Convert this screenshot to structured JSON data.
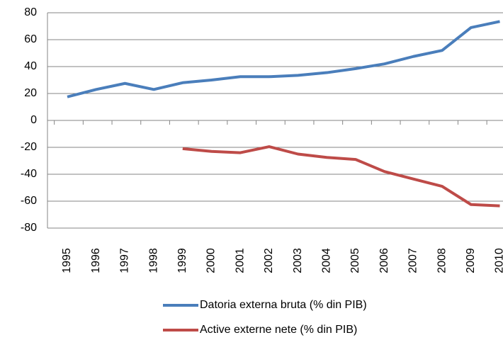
{
  "chart_data": {
    "type": "line",
    "categories": [
      "1995",
      "1996",
      "1997",
      "1998",
      "1999",
      "2000",
      "2001",
      "2002",
      "2003",
      "2004",
      "2005",
      "2006",
      "2007",
      "2008",
      "2009",
      "2010"
    ],
    "series": [
      {
        "name": "Datoria externa bruta (% din PIB)",
        "color": "#4a7ebb",
        "values": [
          17.5,
          23,
          27.5,
          23,
          28,
          30,
          32.5,
          32.5,
          33.5,
          35.5,
          38.5,
          42,
          47.5,
          52,
          69,
          73.5
        ]
      },
      {
        "name": "Active externe nete (% din PIB)",
        "color": "#be4b48",
        "values": [
          null,
          null,
          null,
          null,
          -21,
          -23,
          -24,
          -19.5,
          -25,
          -27.5,
          -29,
          -38,
          -43.5,
          -49,
          -62.5,
          -63.5
        ]
      }
    ],
    "ylim": [
      -80,
      80
    ],
    "yticks": [
      -80,
      -60,
      -40,
      -20,
      0,
      20,
      40,
      60,
      80
    ],
    "grid": true
  }
}
